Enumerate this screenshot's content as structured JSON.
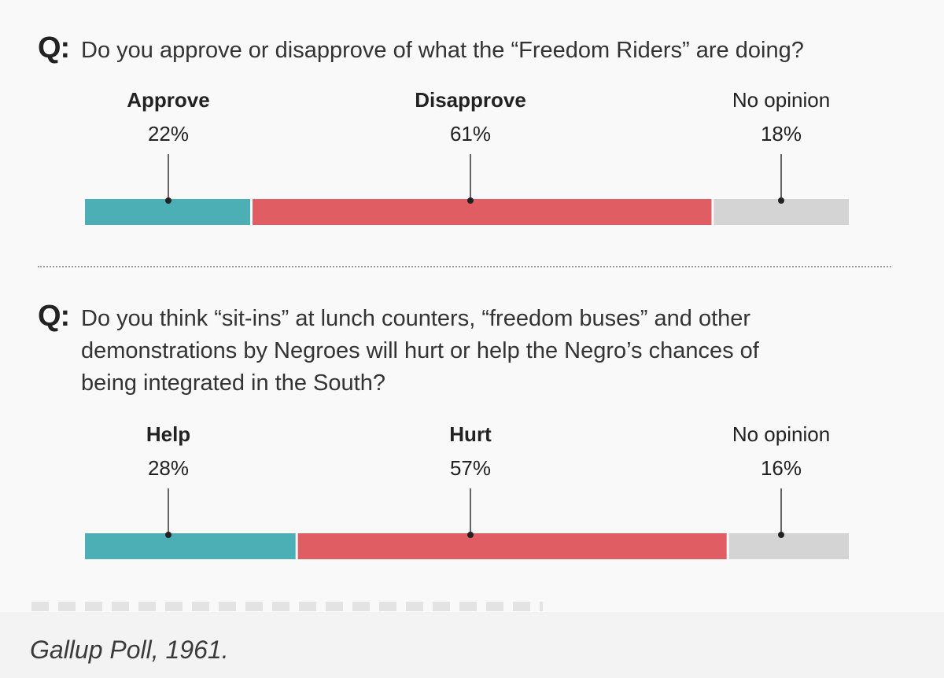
{
  "colors": {
    "positive": "#4cafb5",
    "negative": "#e05d63",
    "neutral": "#d4d4d4",
    "text": "#222222"
  },
  "caption": "Gallup Poll, 1961.",
  "chart_data": [
    {
      "type": "bar",
      "stacked": true,
      "question_marker": "Q:",
      "question": "Do you approve or disapprove of what the “Freedom Riders” are doing?",
      "categories": [
        "Approve",
        "Disapprove",
        "No opinion"
      ],
      "values": [
        22,
        61,
        18
      ],
      "value_labels": [
        "22%",
        "61%",
        "18%"
      ]
    },
    {
      "type": "bar",
      "stacked": true,
      "question_marker": "Q:",
      "question_lines": [
        "Do you think “sit-ins” at lunch counters, “freedom buses” and other",
        "demonstrations by Negroes will hurt or help the Negro’s chances of",
        "being integrated in the South?"
      ],
      "categories": [
        "Help",
        "Hurt",
        "No opinion"
      ],
      "values": [
        28,
        57,
        16
      ],
      "value_labels": [
        "28%",
        "57%",
        "16%"
      ]
    }
  ]
}
